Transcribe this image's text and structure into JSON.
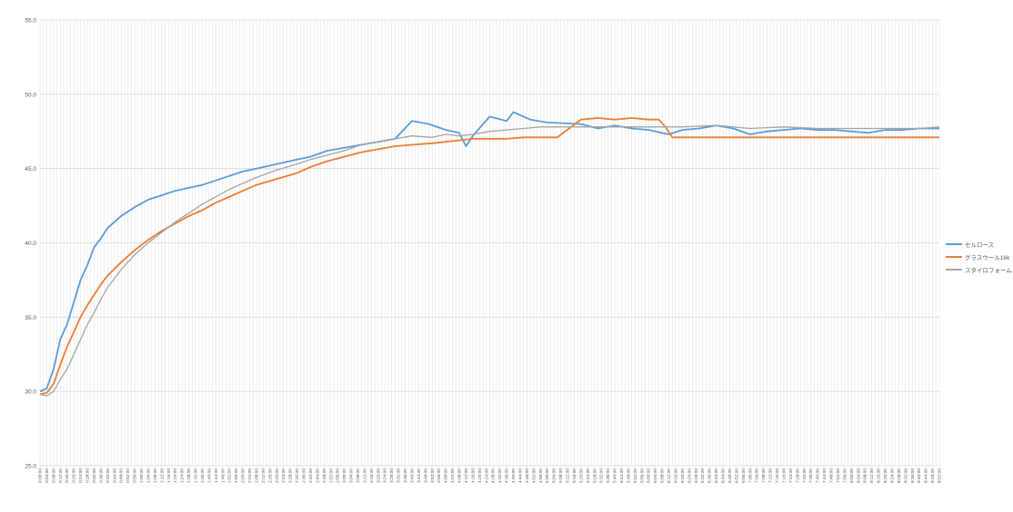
{
  "chart_data": {
    "type": "line",
    "title": "",
    "xlabel": "",
    "ylabel": "",
    "ylim": [
      25.0,
      55.0
    ],
    "yticks": [
      "25.0",
      "30.0",
      "35.0",
      "40.0",
      "45.0",
      "50.0",
      "55.0"
    ],
    "x_range": [
      "0:00:00",
      "8:52:00"
    ],
    "x_step_minutes": 2,
    "x_label_every_minutes": 4,
    "grid": true,
    "legend_position": "right",
    "series": [
      {
        "name": "セルロース",
        "color": "#5B9BD5",
        "points": [
          [
            0,
            30.0
          ],
          [
            4,
            30.2
          ],
          [
            8,
            31.5
          ],
          [
            12,
            33.5
          ],
          [
            16,
            34.5
          ],
          [
            20,
            36.0
          ],
          [
            24,
            37.5
          ],
          [
            28,
            38.5
          ],
          [
            32,
            39.7
          ],
          [
            36,
            40.3
          ],
          [
            40,
            41.0
          ],
          [
            48,
            41.8
          ],
          [
            56,
            42.4
          ],
          [
            64,
            42.9
          ],
          [
            72,
            43.2
          ],
          [
            80,
            43.5
          ],
          [
            88,
            43.7
          ],
          [
            96,
            43.9
          ],
          [
            104,
            44.2
          ],
          [
            112,
            44.5
          ],
          [
            120,
            44.8
          ],
          [
            128,
            45.0
          ],
          [
            140,
            45.3
          ],
          [
            152,
            45.6
          ],
          [
            160,
            45.8
          ],
          [
            170,
            46.2
          ],
          [
            180,
            46.4
          ],
          [
            190,
            46.6
          ],
          [
            200,
            46.8
          ],
          [
            210,
            47.0
          ],
          [
            215,
            47.6
          ],
          [
            220,
            48.2
          ],
          [
            230,
            48.0
          ],
          [
            240,
            47.6
          ],
          [
            248,
            47.4
          ],
          [
            252,
            46.5
          ],
          [
            256,
            47.2
          ],
          [
            266,
            48.5
          ],
          [
            276,
            48.2
          ],
          [
            280,
            48.8
          ],
          [
            290,
            48.3
          ],
          [
            300,
            48.1
          ],
          [
            320,
            48.0
          ],
          [
            330,
            47.7
          ],
          [
            340,
            47.9
          ],
          [
            350,
            47.7
          ],
          [
            360,
            47.6
          ],
          [
            372,
            47.3
          ],
          [
            380,
            47.6
          ],
          [
            390,
            47.7
          ],
          [
            400,
            47.9
          ],
          [
            410,
            47.7
          ],
          [
            420,
            47.3
          ],
          [
            430,
            47.5
          ],
          [
            440,
            47.6
          ],
          [
            450,
            47.7
          ],
          [
            460,
            47.6
          ],
          [
            470,
            47.6
          ],
          [
            480,
            47.5
          ],
          [
            490,
            47.4
          ],
          [
            500,
            47.6
          ],
          [
            510,
            47.6
          ],
          [
            520,
            47.7
          ],
          [
            532,
            47.7
          ]
        ]
      },
      {
        "name": "グラスウール16k",
        "color": "#ED7D31",
        "points": [
          [
            0,
            29.8
          ],
          [
            4,
            29.9
          ],
          [
            8,
            30.5
          ],
          [
            12,
            31.8
          ],
          [
            16,
            33.0
          ],
          [
            20,
            34.0
          ],
          [
            24,
            35.0
          ],
          [
            28,
            35.8
          ],
          [
            32,
            36.5
          ],
          [
            36,
            37.2
          ],
          [
            40,
            37.8
          ],
          [
            48,
            38.7
          ],
          [
            56,
            39.5
          ],
          [
            64,
            40.2
          ],
          [
            72,
            40.8
          ],
          [
            80,
            41.3
          ],
          [
            88,
            41.8
          ],
          [
            96,
            42.2
          ],
          [
            104,
            42.7
          ],
          [
            112,
            43.1
          ],
          [
            120,
            43.5
          ],
          [
            128,
            43.9
          ],
          [
            140,
            44.3
          ],
          [
            152,
            44.7
          ],
          [
            160,
            45.1
          ],
          [
            170,
            45.5
          ],
          [
            180,
            45.8
          ],
          [
            190,
            46.1
          ],
          [
            200,
            46.3
          ],
          [
            210,
            46.5
          ],
          [
            220,
            46.6
          ],
          [
            232,
            46.7
          ],
          [
            240,
            46.8
          ],
          [
            248,
            46.9
          ],
          [
            256,
            47.0
          ],
          [
            266,
            47.0
          ],
          [
            276,
            47.0
          ],
          [
            286,
            47.1
          ],
          [
            296,
            47.1
          ],
          [
            306,
            47.1
          ],
          [
            320,
            48.3
          ],
          [
            330,
            48.4
          ],
          [
            340,
            48.3
          ],
          [
            350,
            48.4
          ],
          [
            360,
            48.3
          ],
          [
            366,
            48.3
          ],
          [
            370,
            47.8
          ],
          [
            374,
            47.1
          ],
          [
            390,
            47.1
          ],
          [
            410,
            47.1
          ],
          [
            430,
            47.1
          ],
          [
            450,
            47.1
          ],
          [
            470,
            47.1
          ],
          [
            490,
            47.1
          ],
          [
            510,
            47.1
          ],
          [
            532,
            47.1
          ]
        ]
      },
      {
        "name": "スタイロフォーム",
        "color": "#A5A5A5",
        "points": [
          [
            0,
            29.8
          ],
          [
            4,
            29.7
          ],
          [
            8,
            30.0
          ],
          [
            12,
            30.8
          ],
          [
            16,
            31.5
          ],
          [
            20,
            32.5
          ],
          [
            24,
            33.5
          ],
          [
            28,
            34.5
          ],
          [
            32,
            35.3
          ],
          [
            36,
            36.2
          ],
          [
            40,
            37.0
          ],
          [
            48,
            38.2
          ],
          [
            56,
            39.2
          ],
          [
            64,
            40.0
          ],
          [
            72,
            40.7
          ],
          [
            80,
            41.4
          ],
          [
            88,
            42.0
          ],
          [
            96,
            42.6
          ],
          [
            104,
            43.1
          ],
          [
            112,
            43.6
          ],
          [
            120,
            44.0
          ],
          [
            128,
            44.4
          ],
          [
            140,
            44.9
          ],
          [
            152,
            45.3
          ],
          [
            160,
            45.6
          ],
          [
            170,
            45.9
          ],
          [
            180,
            46.2
          ],
          [
            190,
            46.6
          ],
          [
            200,
            46.8
          ],
          [
            210,
            47.0
          ],
          [
            220,
            47.2
          ],
          [
            232,
            47.1
          ],
          [
            240,
            47.3
          ],
          [
            248,
            47.2
          ],
          [
            256,
            47.3
          ],
          [
            266,
            47.5
          ],
          [
            276,
            47.6
          ],
          [
            286,
            47.7
          ],
          [
            296,
            47.8
          ],
          [
            306,
            47.8
          ],
          [
            320,
            47.8
          ],
          [
            340,
            47.8
          ],
          [
            360,
            47.8
          ],
          [
            380,
            47.8
          ],
          [
            400,
            47.9
          ],
          [
            420,
            47.7
          ],
          [
            440,
            47.8
          ],
          [
            460,
            47.7
          ],
          [
            480,
            47.7
          ],
          [
            500,
            47.7
          ],
          [
            520,
            47.7
          ],
          [
            532,
            47.8
          ]
        ]
      }
    ]
  }
}
